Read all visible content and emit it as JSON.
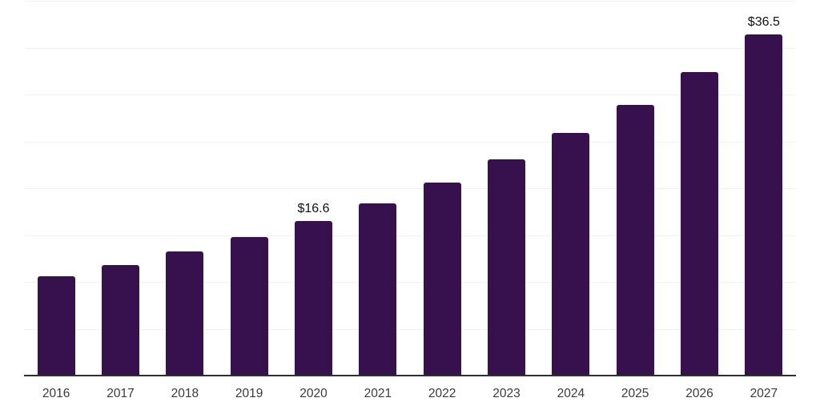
{
  "chart_data": {
    "type": "bar",
    "title": "",
    "xlabel": "",
    "ylabel": "",
    "categories": [
      "2016",
      "2017",
      "2018",
      "2019",
      "2020",
      "2021",
      "2022",
      "2023",
      "2024",
      "2025",
      "2026",
      "2027"
    ],
    "values": [
      10.7,
      11.9,
      13.3,
      14.9,
      16.6,
      18.5,
      20.7,
      23.2,
      26.0,
      29.0,
      32.5,
      36.5
    ],
    "data_labels": [
      null,
      null,
      null,
      null,
      "$16.6",
      null,
      null,
      null,
      null,
      null,
      null,
      "$36.5"
    ],
    "ylim": [
      0,
      40
    ],
    "grid_step": 5,
    "grid_visible": true,
    "legend": "none",
    "colors": {
      "bar": "#36114e",
      "gridline": "#f2f2f2",
      "axis_line": "#2f2f2f",
      "tick_label": "#3a3a3a",
      "data_label": "#111111",
      "background": "#ffffff"
    }
  }
}
